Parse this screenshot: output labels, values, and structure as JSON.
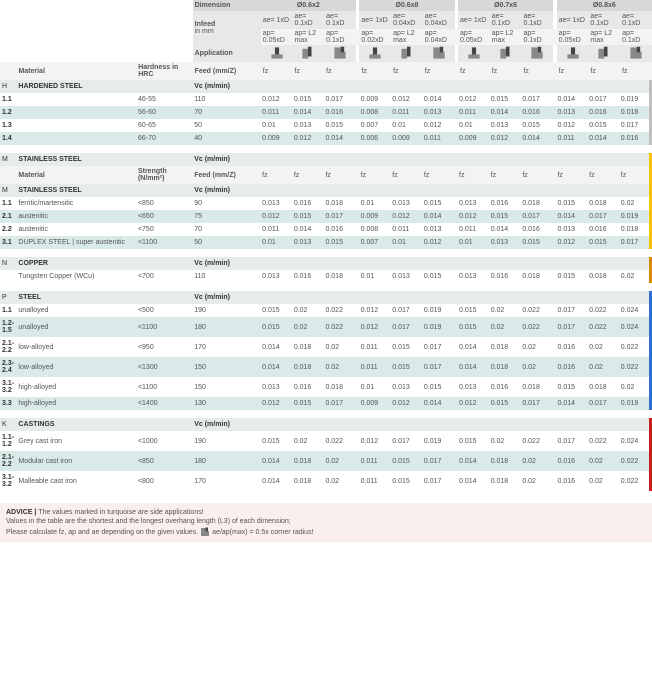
{
  "headers": {
    "dimension": "Dimension",
    "infeed": "Infeed",
    "infeed_unit": "in mm",
    "application": "Application",
    "material": "Material",
    "hardness_hrc": "Hardness in HRC",
    "strength": "Strength (N/mm²)",
    "feed": "Feed (mm/Z)",
    "fz": "fz",
    "vc": "Vc (m/min)"
  },
  "dim_groups": [
    {
      "label": "Ø0.6x2",
      "cols": [
        {
          "ae": "ae= 1xD",
          "ap": "ap= 0.05xD",
          "icon": "slot"
        },
        {
          "ae": "ae= 0.1xD",
          "ap": "ap= L2 max",
          "icon": "side"
        },
        {
          "ae": "ae= 0.1xD",
          "ap": "ap= 0.1xD",
          "icon": "shoulder"
        }
      ]
    },
    {
      "label": "Ø0.6x8",
      "cols": [
        {
          "ae": "ae= 1xD",
          "ap": "ap= 0.02xD",
          "icon": "slot"
        },
        {
          "ae": "ae= 0.04xD",
          "ap": "ap= L2 max",
          "icon": "side"
        },
        {
          "ae": "ae= 0.04xD",
          "ap": "ap= 0.04xD",
          "icon": "shoulder"
        }
      ]
    },
    {
      "label": "Ø0.7x6",
      "cols": [
        {
          "ae": "ae= 1xD",
          "ap": "ap= 0.05xD",
          "icon": "slot"
        },
        {
          "ae": "ae= 0.1xD",
          "ap": "ap= L2 max",
          "icon": "side"
        },
        {
          "ae": "ae= 0.1xD",
          "ap": "ap= 0.1xD",
          "icon": "shoulder"
        }
      ]
    },
    {
      "label": "Ø0.8x6",
      "cols": [
        {
          "ae": "ae= 1xD",
          "ap": "ap= 0.05xD",
          "icon": "slot"
        },
        {
          "ae": "ae= 0.1xD",
          "ap": "ap= L2 max",
          "icon": "side"
        },
        {
          "ae": "ae= 0.1xD",
          "ap": "ap= 0.1xD",
          "icon": "shoulder"
        }
      ]
    }
  ],
  "sections": [
    {
      "code": "H",
      "name": "HARDENED STEEL",
      "cond": "hrc",
      "stripe": "stripe-H",
      "rows": [
        {
          "ref": "1.1",
          "mat": "",
          "cond": "46-55",
          "vc": "110",
          "t": false,
          "fz": [
            "0.012",
            "0.015",
            "0.017",
            "0.009",
            "0.012",
            "0.014",
            "0.012",
            "0.015",
            "0.017",
            "0.014",
            "0.017",
            "0.019"
          ]
        },
        {
          "ref": "1.2",
          "mat": "",
          "cond": "56-60",
          "vc": "70",
          "t": true,
          "fz": [
            "0.011",
            "0.014",
            "0.016",
            "0.008",
            "0.011",
            "0.013",
            "0.011",
            "0.014",
            "0.016",
            "0.013",
            "0.016",
            "0.018"
          ]
        },
        {
          "ref": "1.3",
          "mat": "",
          "cond": "60-65",
          "vc": "50",
          "t": false,
          "fz": [
            "0.01",
            "0.013",
            "0.015",
            "0.007",
            "0.01",
            "0.012",
            "0.01",
            "0.013",
            "0.015",
            "0.012",
            "0.015",
            "0.017"
          ]
        },
        {
          "ref": "1.4",
          "mat": "",
          "cond": "66-70",
          "vc": "40",
          "t": true,
          "fz": [
            "0.009",
            "0.012",
            "0.014",
            "0.006",
            "0.009",
            "0.011",
            "0.009",
            "0.012",
            "0.014",
            "0.011",
            "0.014",
            "0.016"
          ]
        }
      ]
    },
    {
      "code": "M",
      "name": "STAINLESS STEEL",
      "cond": "strength",
      "stripe": "stripe-M",
      "rows": [
        {
          "ref": "1.1",
          "mat": "ferritic/martensitic",
          "cond": "<850",
          "vc": "90",
          "t": false,
          "fz": [
            "0.013",
            "0.016",
            "0.018",
            "0.01",
            "0.013",
            "0.015",
            "0.013",
            "0.016",
            "0.018",
            "0.015",
            "0.018",
            "0.02"
          ]
        },
        {
          "ref": "2.1",
          "mat": "austenitic",
          "cond": "<650",
          "vc": "75",
          "t": true,
          "fz": [
            "0.012",
            "0.015",
            "0.017",
            "0.009",
            "0.012",
            "0.014",
            "0.012",
            "0.015",
            "0.017",
            "0.014",
            "0.017",
            "0.019"
          ]
        },
        {
          "ref": "2.2",
          "mat": "austenitic",
          "cond": "<750",
          "vc": "70",
          "t": false,
          "fz": [
            "0.011",
            "0.014",
            "0.016",
            "0.008",
            "0.011",
            "0.013",
            "0.011",
            "0.014",
            "0.016",
            "0.013",
            "0.016",
            "0.018"
          ]
        },
        {
          "ref": "3.1",
          "mat": "DUPLEX STEEL | super austenitic",
          "cond": "<1100",
          "vc": "50",
          "t": true,
          "fz": [
            "0.01",
            "0.013",
            "0.015",
            "0.007",
            "0.01",
            "0.012",
            "0.01",
            "0.013",
            "0.015",
            "0.012",
            "0.015",
            "0.017"
          ]
        }
      ]
    },
    {
      "code": "N",
      "name": "COPPER",
      "cond": "strength_hidden",
      "stripe": "stripe-N",
      "rows": [
        {
          "ref": "",
          "mat": "Tungsten Copper (WCu)",
          "cond": "<700",
          "vc": "110",
          "t": false,
          "fz": [
            "0.013",
            "0.016",
            "0.018",
            "0.01",
            "0.013",
            "0.015",
            "0.013",
            "0.016",
            "0.018",
            "0.015",
            "0.018",
            "0.02"
          ]
        }
      ]
    },
    {
      "code": "P",
      "name": "STEEL",
      "cond": "strength_hidden",
      "stripe": "stripe-P",
      "rows": [
        {
          "ref": "1.1",
          "mat": "unalloyed",
          "cond": "<500",
          "vc": "190",
          "t": false,
          "fz": [
            "0.015",
            "0.02",
            "0.022",
            "0.012",
            "0.017",
            "0.019",
            "0.015",
            "0.02",
            "0.022",
            "0.017",
            "0.022",
            "0.024"
          ]
        },
        {
          "ref": "1.2-1.5",
          "mat": "unalloyed",
          "cond": "<1100",
          "vc": "180",
          "t": true,
          "fz": [
            "0.015",
            "0.02",
            "0.022",
            "0.012",
            "0.017",
            "0.019",
            "0.015",
            "0.02",
            "0.022",
            "0.017",
            "0.022",
            "0.024"
          ]
        },
        {
          "ref": "2.1-2.2",
          "mat": "low-alloyed",
          "cond": "<950",
          "vc": "170",
          "t": false,
          "fz": [
            "0.014",
            "0.018",
            "0.02",
            "0.011",
            "0.015",
            "0.017",
            "0.014",
            "0.018",
            "0.02",
            "0.016",
            "0.02",
            "0.022"
          ]
        },
        {
          "ref": "2.3-2.4",
          "mat": "low-alloyed",
          "cond": "<1300",
          "vc": "150",
          "t": true,
          "fz": [
            "0.014",
            "0.018",
            "0.02",
            "0.011",
            "0.015",
            "0.017",
            "0.014",
            "0.018",
            "0.02",
            "0.016",
            "0.02",
            "0.022"
          ]
        },
        {
          "ref": "3.1-3.2",
          "mat": "high-alloyed",
          "cond": "<1100",
          "vc": "150",
          "t": false,
          "fz": [
            "0.013",
            "0.016",
            "0.018",
            "0.01",
            "0.013",
            "0.015",
            "0.013",
            "0.016",
            "0.018",
            "0.015",
            "0.018",
            "0.02"
          ]
        },
        {
          "ref": "3.3",
          "mat": "high-alloyed",
          "cond": "<1400",
          "vc": "130",
          "t": true,
          "fz": [
            "0.012",
            "0.015",
            "0.017",
            "0.009",
            "0.012",
            "0.014",
            "0.012",
            "0.015",
            "0.017",
            "0.014",
            "0.017",
            "0.019"
          ]
        }
      ]
    },
    {
      "code": "K",
      "name": "CASTINGS",
      "cond": "strength_hidden",
      "stripe": "stripe-K",
      "rows": [
        {
          "ref": "1.1-1.2",
          "mat": "Grey cast iron",
          "cond": "<1000",
          "vc": "190",
          "t": false,
          "fz": [
            "0.015",
            "0.02",
            "0.022",
            "0.012",
            "0.017",
            "0.019",
            "0.015",
            "0.02",
            "0.022",
            "0.017",
            "0.022",
            "0.024"
          ]
        },
        {
          "ref": "2.1-2.2",
          "mat": "Modular cast iron",
          "cond": "<850",
          "vc": "180",
          "t": true,
          "fz": [
            "0.014",
            "0.018",
            "0.02",
            "0.011",
            "0.015",
            "0.017",
            "0.014",
            "0.018",
            "0.02",
            "0.016",
            "0.02",
            "0.022"
          ]
        },
        {
          "ref": "3.1-3.2",
          "mat": "Malleable cast iron",
          "cond": "<800",
          "vc": "170",
          "t": false,
          "fz": [
            "0.014",
            "0.018",
            "0.02",
            "0.011",
            "0.015",
            "0.017",
            "0.014",
            "0.018",
            "0.02",
            "0.016",
            "0.02",
            "0.022"
          ]
        }
      ]
    }
  ],
  "advice": {
    "title": "ADVICE  |  ",
    "l1": "The values marked in turquoise are side applications!",
    "l2": "Values in the table are the shortest and the longest overhang length (L3) of each dimension;",
    "l3a": "Please calculate fz, ap and ae depending on the given values.  ",
    "l3b": "  ae/ap(max) = 0.5x corner radius!"
  },
  "colors": {
    "turq": "#d9eae8",
    "matHdr": "#e5eceb",
    "gridDark": "#d8d8d8",
    "gridLight": "#e8e8e8",
    "gridLighter": "#f3f3f3",
    "adviceBg": "#fbeeee"
  }
}
